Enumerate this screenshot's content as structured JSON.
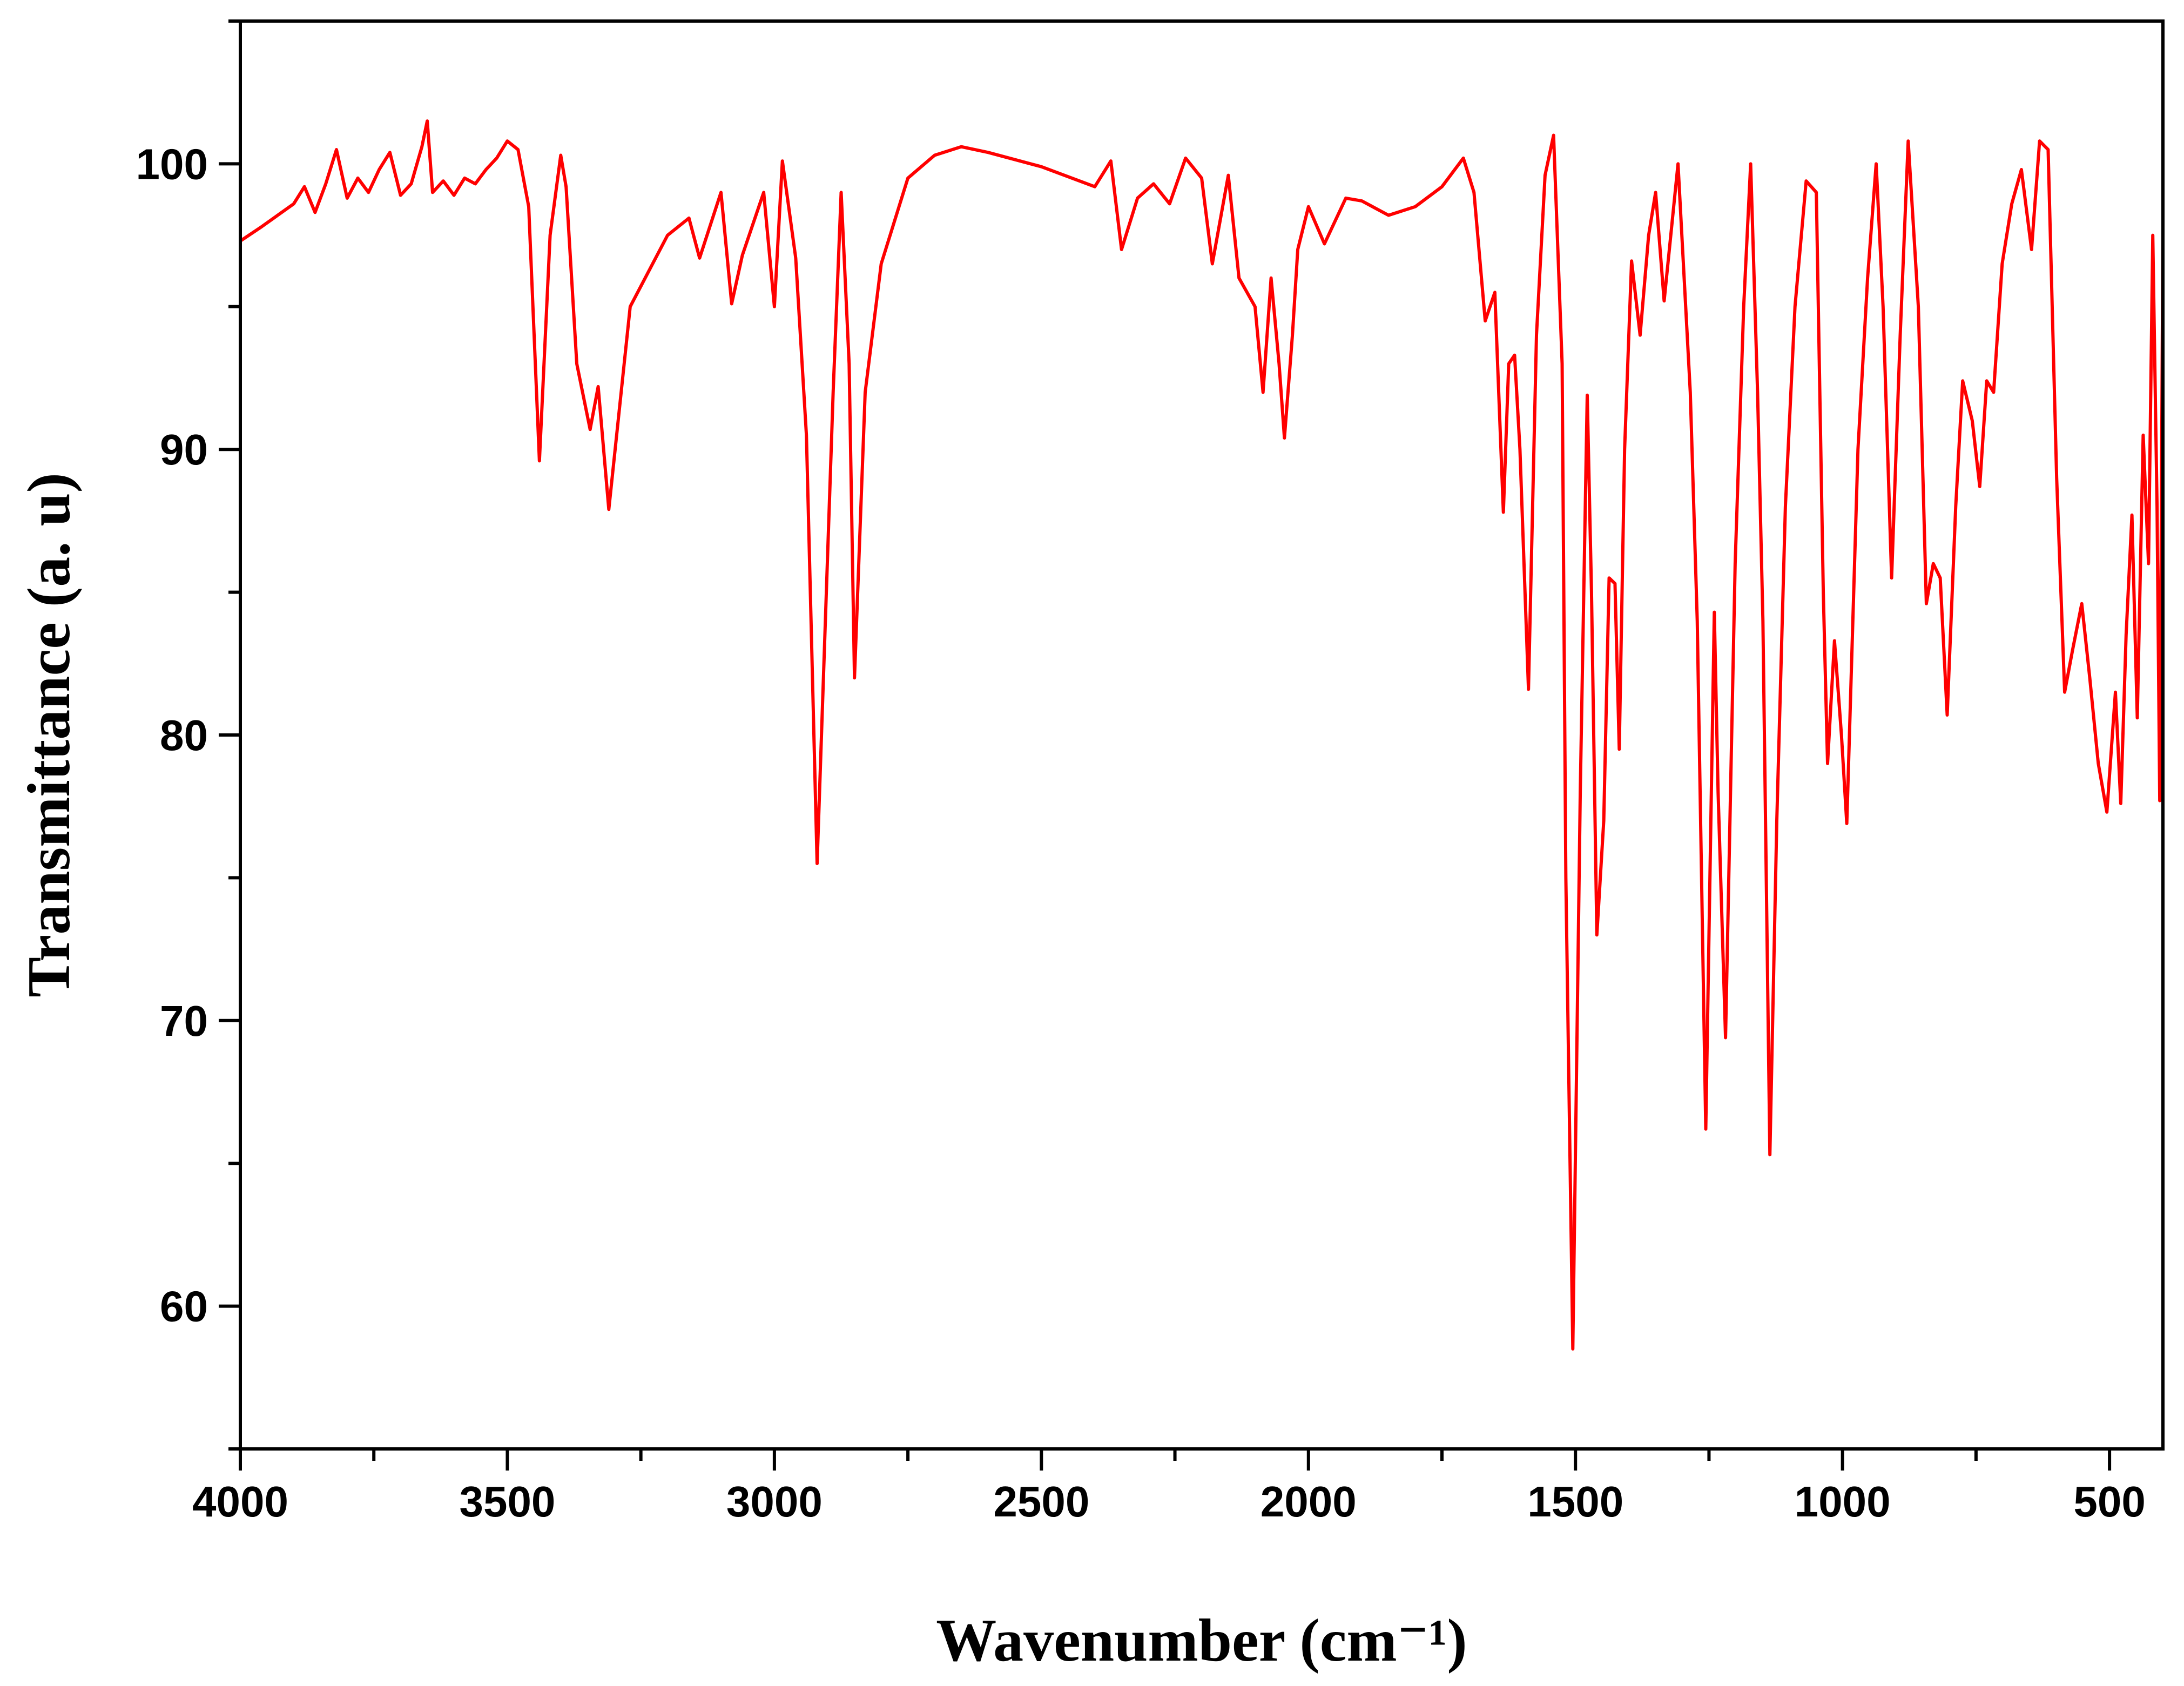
{
  "chart_data": {
    "type": "line",
    "x_label": "Wavenumber (cm⁻¹)",
    "y_label": "Transmittance (a. u)",
    "xlim": [
      4000,
      400
    ],
    "ylim": [
      55,
      105
    ],
    "xticks": [
      4000,
      3500,
      3000,
      2500,
      2000,
      1500,
      1000,
      500
    ],
    "yticks": [
      60,
      70,
      80,
      90,
      100
    ],
    "xminor_ticks": [
      3750,
      3250,
      2750,
      2250,
      1750,
      1250,
      750
    ],
    "yminor_ticks": [
      55,
      65,
      75,
      85,
      95,
      105
    ],
    "series": [
      {
        "name": "spectrum",
        "color": "#ff0000",
        "x": [
          4000,
          3960,
          3930,
          3900,
          3880,
          3860,
          3840,
          3820,
          3800,
          3780,
          3760,
          3740,
          3720,
          3700,
          3680,
          3660,
          3650,
          3640,
          3620,
          3600,
          3580,
          3560,
          3540,
          3520,
          3500,
          3480,
          3460,
          3440,
          3420,
          3400,
          3390,
          3370,
          3345,
          3330,
          3310,
          3270,
          3200,
          3160,
          3140,
          3100,
          3080,
          3060,
          3020,
          3000,
          2985,
          2960,
          2940,
          2920,
          2890,
          2875,
          2860,
          2850,
          2830,
          2800,
          2750,
          2700,
          2650,
          2600,
          2500,
          2400,
          2370,
          2350,
          2320,
          2290,
          2260,
          2230,
          2200,
          2180,
          2150,
          2130,
          2100,
          2085,
          2070,
          2055,
          2045,
          2030,
          2020,
          2000,
          1970,
          1950,
          1930,
          1900,
          1850,
          1800,
          1750,
          1710,
          1690,
          1669,
          1651,
          1635,
          1625,
          1614,
          1604,
          1588,
          1573,
          1557,
          1541,
          1525,
          1518,
          1505,
          1491,
          1478,
          1470,
          1460,
          1447,
          1437,
          1426,
          1418,
          1408,
          1395,
          1379,
          1363,
          1350,
          1334,
          1308,
          1285,
          1272,
          1256,
          1240,
          1233,
          1219,
          1201,
          1185,
          1172,
          1159,
          1149,
          1136,
          1123,
          1107,
          1089,
          1068,
          1049,
          1036,
          1028,
          1015,
          1002,
          992,
          971,
          953,
          937,
          924,
          908,
          892,
          877,
          858,
          843,
          830,
          817,
          804,
          788,
          775,
          757,
          743,
          730,
          717,
          701,
          683,
          665,
          646,
          631,
          615,
          599,
          584,
          569,
          552,
          537,
          521,
          505,
          489,
          479,
          469,
          458,
          448,
          437,
          427,
          419,
          411,
          406,
          400
        ],
        "values": [
          97.3,
          97.8,
          98.2,
          98.6,
          99.2,
          98.3,
          99.3,
          100.5,
          98.8,
          99.5,
          99.0,
          99.8,
          100.4,
          98.9,
          99.3,
          100.6,
          101.5,
          99.0,
          99.4,
          98.9,
          99.5,
          99.3,
          99.8,
          100.2,
          100.8,
          100.5,
          98.5,
          89.6,
          97.5,
          100.3,
          99.2,
          93.0,
          90.7,
          92.2,
          87.9,
          95.0,
          97.5,
          98.1,
          96.7,
          99.0,
          95.1,
          96.8,
          99.0,
          95.0,
          100.1,
          96.7,
          90.5,
          75.5,
          92.0,
          99.0,
          93.0,
          82.0,
          92.0,
          96.5,
          99.5,
          100.3,
          100.6,
          100.4,
          99.9,
          99.2,
          100.1,
          97.0,
          98.8,
          99.3,
          98.6,
          100.2,
          99.5,
          96.5,
          99.6,
          96.0,
          95.0,
          92.0,
          96.0,
          93.0,
          90.4,
          94.0,
          97.0,
          98.5,
          97.2,
          98.0,
          98.8,
          98.7,
          98.2,
          98.5,
          99.2,
          100.2,
          99.0,
          94.5,
          95.5,
          87.8,
          93.0,
          93.3,
          90.0,
          81.6,
          94.0,
          99.6,
          101.0,
          93.0,
          75.0,
          58.5,
          78.0,
          91.9,
          85.0,
          73.0,
          77.0,
          85.5,
          85.3,
          79.5,
          90.0,
          96.6,
          94.0,
          97.5,
          99.0,
          95.2,
          100.0,
          92.0,
          84.0,
          66.2,
          84.3,
          78.0,
          69.4,
          86.0,
          95.0,
          100.0,
          92.0,
          84.0,
          65.3,
          77.0,
          88.0,
          95.0,
          99.4,
          99.0,
          85.0,
          79.0,
          83.3,
          80.0,
          76.9,
          90.0,
          96.0,
          100.0,
          95.0,
          85.5,
          94.0,
          100.8,
          95.0,
          84.6,
          86.0,
          85.5,
          80.7,
          88.0,
          92.4,
          91.0,
          88.7,
          92.4,
          92.0,
          96.5,
          98.6,
          99.8,
          97.0,
          100.8,
          100.5,
          89.0,
          81.5,
          83.0,
          84.6,
          82.0,
          79.0,
          77.3,
          81.5,
          77.6,
          83.5,
          87.7,
          80.6,
          90.5,
          86.0,
          97.5,
          88.0,
          77.7,
          97.8
        ]
      }
    ]
  }
}
